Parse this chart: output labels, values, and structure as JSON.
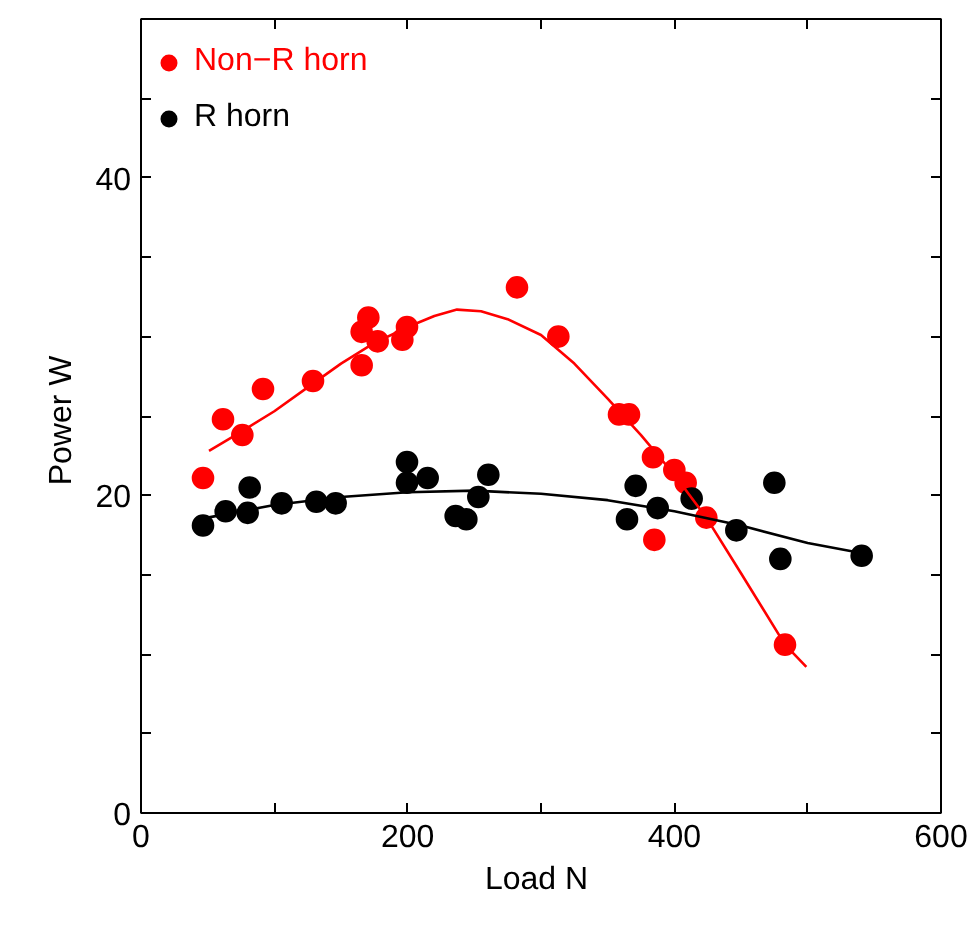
{
  "chart_data": {
    "type": "scatter",
    "xlabel": "Load  N",
    "ylabel": "Power  W",
    "xlim": [
      0,
      600
    ],
    "ylim": [
      0,
      50
    ],
    "xticks": [
      0,
      {
        "value": 100,
        "label": null
      },
      200,
      {
        "value": 300,
        "label": null
      },
      400,
      {
        "value": 500,
        "label": null
      },
      600
    ],
    "yticks": [
      0,
      {
        "value": 5,
        "label": null
      },
      {
        "value": 10,
        "label": null
      },
      {
        "value": 15,
        "label": null
      },
      20,
      {
        "value": 25,
        "label": null
      },
      {
        "value": 30,
        "label": null
      },
      {
        "value": 35,
        "label": null
      },
      40,
      {
        "value": 45,
        "label": null
      },
      {
        "value": 50,
        "label": null
      }
    ],
    "grid": false,
    "legend": "top left",
    "series": [
      {
        "name": "Non−R horn",
        "color": "#ff0000",
        "marker": "circle",
        "x": [
          46.5,
          61.5,
          76,
          91.5,
          129,
          165.5,
          165.5,
          170.5,
          177.5,
          196,
          199.5,
          282,
          313,
          358.5,
          366,
          384,
          400,
          408.5,
          424,
          385,
          483
        ],
        "values": [
          21.1,
          24.8,
          23.8,
          26.7,
          27.2,
          28.2,
          30.3,
          31.2,
          29.7,
          29.8,
          30.6,
          33.1,
          30.0,
          25.1,
          25.1,
          22.4,
          21.6,
          20.8,
          18.6,
          17.2,
          10.6
        ]
      },
      {
        "name": "R horn",
        "color": "#000000",
        "marker": "circle",
        "x": [
          46.5,
          63.5,
          80,
          81.5,
          105.5,
          131.5,
          146,
          199.5,
          199.5,
          215,
          236,
          244,
          253,
          260.5,
          364.5,
          371,
          387.5,
          413,
          446.5,
          475,
          479.5,
          540.5
        ],
        "values": [
          18.1,
          19.0,
          18.9,
          20.5,
          19.5,
          19.6,
          19.5,
          22.1,
          20.8,
          21.1,
          18.7,
          18.5,
          19.9,
          21.3,
          18.5,
          20.6,
          19.2,
          19.8,
          17.8,
          20.8,
          16.0,
          16.2
        ]
      },
      {
        "type": "line",
        "color": "#ff0000",
        "marker": "none",
        "x": [
          51,
          75,
          100,
          125,
          150,
          175,
          200,
          220,
          237,
          255,
          275,
          300,
          325,
          350,
          375,
          400,
          424,
          450,
          483,
          499
        ],
        "values": [
          22.8,
          24.0,
          25.3,
          26.8,
          28.3,
          29.6,
          30.6,
          31.3,
          31.7,
          31.6,
          31.1,
          30.1,
          28.3,
          26.1,
          23.8,
          21.3,
          18.6,
          15.1,
          10.6,
          9.2
        ]
      },
      {
        "type": "line",
        "color": "#000000",
        "marker": "none",
        "x": [
          50,
          100,
          150,
          200,
          250,
          300,
          350,
          400,
          450,
          500,
          545
        ],
        "values": [
          18.6,
          19.4,
          19.9,
          20.2,
          20.3,
          20.1,
          19.7,
          19.0,
          18.1,
          17.0,
          16.3
        ]
      }
    ]
  }
}
